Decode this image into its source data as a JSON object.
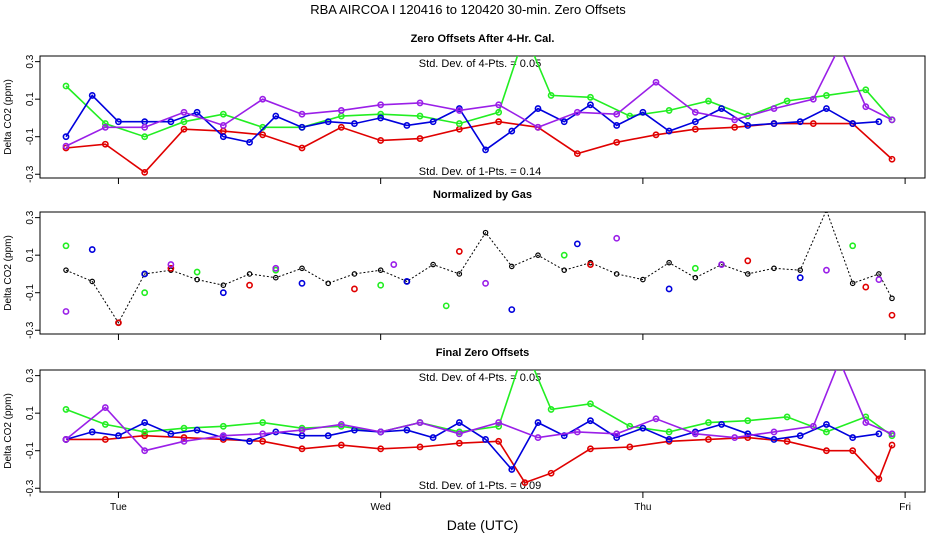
{
  "title": "RBA   AIRCOA I   120416 to 120420   30-min. Zero Offsets",
  "xlabel": "Date (UTC)",
  "colors": {
    "red": "#e00000",
    "green": "#22ee22",
    "blue": "#0000dd",
    "purple": "#9a1fe8",
    "black": "#000000"
  },
  "chart_data": [
    {
      "type": "line",
      "title": "Zero Offsets After 4-Hr. Cal.",
      "ylabel": "Delta CO2 (ppm)",
      "ylim": [
        -0.32,
        0.33
      ],
      "yticks": [
        "-0.3",
        "-0.1",
        "0.1",
        "0.3"
      ],
      "xlim": [
        0,
        3.15
      ],
      "xticks": [
        {
          "x": 0.2,
          "label": "Tue"
        },
        {
          "x": 1.2,
          "label": "Wed"
        },
        {
          "x": 2.2,
          "label": "Thu"
        },
        {
          "x": 3.2,
          "label": "Fri"
        }
      ],
      "annotations": [
        "Std. Dev. of 4-Pts. = 0.05",
        "Std. Dev. of 1-Pts. = 0.14"
      ],
      "series": [
        {
          "name": "red",
          "x": [
            0.0,
            0.15,
            0.3,
            0.45,
            0.6,
            0.75,
            0.9,
            1.05,
            1.2,
            1.35,
            1.5,
            1.65,
            1.8,
            1.95,
            2.1,
            2.25,
            2.4,
            2.55,
            2.7,
            2.85,
            3.0,
            3.15
          ],
          "y": [
            -0.16,
            -0.14,
            -0.29,
            -0.06,
            -0.07,
            -0.09,
            -0.16,
            -0.05,
            -0.12,
            -0.11,
            -0.06,
            -0.02,
            -0.05,
            -0.19,
            -0.13,
            -0.09,
            -0.06,
            -0.05,
            -0.03,
            -0.03,
            -0.03,
            -0.22
          ]
        },
        {
          "name": "green",
          "x": [
            0.0,
            0.15,
            0.3,
            0.45,
            0.6,
            0.75,
            0.9,
            1.05,
            1.2,
            1.35,
            1.5,
            1.65,
            1.75,
            1.85,
            2.0,
            2.15,
            2.3,
            2.45,
            2.6,
            2.75,
            2.9,
            3.05,
            3.15
          ],
          "y": [
            0.17,
            -0.03,
            -0.1,
            -0.02,
            0.02,
            -0.05,
            -0.05,
            0.01,
            0.02,
            0.01,
            -0.03,
            0.03,
            0.45,
            0.12,
            0.11,
            0.01,
            0.04,
            0.09,
            0.01,
            0.09,
            0.12,
            0.15,
            -0.01
          ]
        },
        {
          "name": "blue",
          "x": [
            0.0,
            0.1,
            0.2,
            0.3,
            0.4,
            0.5,
            0.6,
            0.7,
            0.8,
            0.9,
            1.0,
            1.1,
            1.2,
            1.3,
            1.4,
            1.5,
            1.6,
            1.7,
            1.8,
            1.9,
            2.0,
            2.1,
            2.2,
            2.3,
            2.4,
            2.5,
            2.6,
            2.7,
            2.8,
            2.9,
            3.0,
            3.1
          ],
          "y": [
            -0.1,
            0.12,
            -0.02,
            -0.02,
            -0.02,
            0.03,
            -0.1,
            -0.13,
            0.01,
            -0.05,
            -0.02,
            -0.03,
            0.0,
            -0.04,
            -0.02,
            0.05,
            -0.17,
            -0.07,
            0.05,
            -0.02,
            0.07,
            -0.04,
            0.03,
            -0.07,
            -0.02,
            0.05,
            -0.04,
            -0.03,
            -0.02,
            0.05,
            -0.03,
            -0.02
          ]
        },
        {
          "name": "purple",
          "x": [
            0.0,
            0.15,
            0.3,
            0.45,
            0.6,
            0.75,
            0.9,
            1.05,
            1.2,
            1.35,
            1.5,
            1.65,
            1.8,
            1.95,
            2.1,
            2.25,
            2.4,
            2.55,
            2.7,
            2.85,
            2.95,
            3.05,
            3.15
          ],
          "y": [
            -0.15,
            -0.05,
            -0.05,
            0.03,
            -0.04,
            0.1,
            0.02,
            0.04,
            0.07,
            0.08,
            0.04,
            0.07,
            -0.05,
            0.03,
            0.02,
            0.19,
            0.03,
            -0.01,
            0.05,
            0.1,
            0.38,
            0.06,
            -0.01
          ]
        }
      ]
    },
    {
      "type": "line",
      "title": "Normalized by Gas",
      "ylabel": "Delta CO2 (ppm)",
      "ylim": [
        -0.32,
        0.33
      ],
      "yticks": [
        "-0.3",
        "-0.1",
        "0.1",
        "0.3"
      ],
      "xlim": [
        0,
        3.15
      ],
      "xticks": [
        {
          "x": 0.2,
          "label": "Tue"
        },
        {
          "x": 1.2,
          "label": "Wed"
        },
        {
          "x": 2.2,
          "label": "Thu"
        },
        {
          "x": 3.2,
          "label": "Fri"
        }
      ],
      "annotations": [],
      "series": [
        {
          "name": "black",
          "x": [
            0.0,
            0.1,
            0.2,
            0.3,
            0.4,
            0.5,
            0.6,
            0.7,
            0.8,
            0.9,
            1.0,
            1.1,
            1.2,
            1.3,
            1.4,
            1.5,
            1.6,
            1.7,
            1.8,
            1.9,
            2.0,
            2.1,
            2.2,
            2.3,
            2.4,
            2.5,
            2.6,
            2.7,
            2.8,
            2.9,
            3.0,
            3.1,
            3.15
          ],
          "y": [
            0.02,
            -0.04,
            -0.26,
            0.0,
            0.02,
            -0.03,
            -0.06,
            0.0,
            -0.02,
            0.03,
            -0.05,
            0.0,
            0.02,
            -0.04,
            0.05,
            0.0,
            0.22,
            0.04,
            0.1,
            0.02,
            0.06,
            0.0,
            -0.03,
            0.06,
            -0.02,
            0.05,
            0.0,
            0.03,
            0.02,
            0.34,
            -0.05,
            0.0,
            -0.13
          ]
        }
      ],
      "points": {
        "red": [
          [
            0.2,
            -0.26
          ],
          [
            0.4,
            0.03
          ],
          [
            0.7,
            -0.06
          ],
          [
            1.1,
            -0.08
          ],
          [
            1.5,
            0.12
          ],
          [
            2.0,
            0.05
          ],
          [
            2.6,
            0.07
          ],
          [
            3.05,
            -0.07
          ],
          [
            3.15,
            -0.22
          ]
        ],
        "green": [
          [
            0.0,
            0.15
          ],
          [
            0.3,
            -0.1
          ],
          [
            0.5,
            0.01
          ],
          [
            0.8,
            0.02
          ],
          [
            1.2,
            -0.06
          ],
          [
            1.45,
            -0.17
          ],
          [
            1.9,
            0.1
          ],
          [
            2.4,
            0.03
          ],
          [
            3.0,
            0.15
          ]
        ],
        "blue": [
          [
            0.1,
            0.13
          ],
          [
            0.3,
            0.0
          ],
          [
            0.6,
            -0.1
          ],
          [
            0.9,
            -0.05
          ],
          [
            1.3,
            -0.04
          ],
          [
            1.7,
            -0.19
          ],
          [
            1.95,
            0.16
          ],
          [
            2.3,
            -0.08
          ],
          [
            2.8,
            -0.02
          ]
        ],
        "purple": [
          [
            0.0,
            -0.2
          ],
          [
            0.4,
            0.05
          ],
          [
            0.8,
            0.03
          ],
          [
            1.25,
            0.05
          ],
          [
            1.6,
            -0.05
          ],
          [
            2.1,
            0.19
          ],
          [
            2.5,
            0.05
          ],
          [
            2.9,
            0.02
          ],
          [
            3.1,
            -0.03
          ]
        ]
      }
    },
    {
      "type": "line",
      "title": "Final Zero Offsets",
      "ylabel": "Delta CO2 (ppm)",
      "ylim": [
        -0.32,
        0.33
      ],
      "yticks": [
        "-0.3",
        "-0.1",
        "0.1",
        "0.3"
      ],
      "xlim": [
        0,
        3.15
      ],
      "xticks": [
        {
          "x": 0.2,
          "label": "Tue"
        },
        {
          "x": 1.2,
          "label": "Wed"
        },
        {
          "x": 2.2,
          "label": "Thu"
        },
        {
          "x": 3.2,
          "label": "Fri"
        }
      ],
      "annotations": [
        "Std. Dev. of 4-Pts. = 0.05",
        "Std. Dev. of 1-Pts. = 0.09"
      ],
      "series": [
        {
          "name": "red",
          "x": [
            0.0,
            0.15,
            0.3,
            0.45,
            0.6,
            0.75,
            0.9,
            1.05,
            1.2,
            1.35,
            1.5,
            1.65,
            1.75,
            1.85,
            2.0,
            2.15,
            2.3,
            2.45,
            2.6,
            2.75,
            2.9,
            3.0,
            3.1,
            3.15
          ],
          "y": [
            -0.04,
            -0.04,
            -0.02,
            -0.03,
            -0.04,
            -0.05,
            -0.09,
            -0.07,
            -0.09,
            -0.08,
            -0.06,
            -0.05,
            -0.27,
            -0.22,
            -0.09,
            -0.08,
            -0.05,
            -0.04,
            -0.03,
            -0.05,
            -0.1,
            -0.1,
            -0.25,
            -0.07
          ]
        },
        {
          "name": "green",
          "x": [
            0.0,
            0.15,
            0.3,
            0.45,
            0.6,
            0.75,
            0.9,
            1.05,
            1.2,
            1.35,
            1.5,
            1.65,
            1.75,
            1.85,
            2.0,
            2.15,
            2.3,
            2.45,
            2.6,
            2.75,
            2.9,
            3.05,
            3.15
          ],
          "y": [
            0.12,
            0.04,
            0.0,
            0.02,
            0.03,
            0.05,
            0.02,
            0.03,
            0.0,
            0.05,
            0.0,
            0.03,
            0.45,
            0.12,
            0.15,
            0.03,
            0.0,
            0.05,
            0.06,
            0.08,
            0.0,
            0.08,
            -0.02
          ]
        },
        {
          "name": "blue",
          "x": [
            0.0,
            0.1,
            0.2,
            0.3,
            0.4,
            0.5,
            0.6,
            0.7,
            0.8,
            0.9,
            1.0,
            1.1,
            1.2,
            1.3,
            1.4,
            1.5,
            1.6,
            1.7,
            1.8,
            1.9,
            2.0,
            2.1,
            2.2,
            2.3,
            2.4,
            2.5,
            2.6,
            2.7,
            2.8,
            2.9,
            3.0,
            3.1
          ],
          "y": [
            -0.04,
            0.0,
            -0.02,
            0.05,
            -0.01,
            0.01,
            -0.03,
            -0.05,
            0.0,
            -0.02,
            -0.02,
            0.01,
            0.0,
            0.01,
            -0.03,
            0.05,
            -0.04,
            -0.2,
            0.05,
            -0.02,
            0.06,
            -0.03,
            0.02,
            -0.04,
            0.0,
            0.04,
            -0.01,
            -0.04,
            -0.02,
            0.04,
            -0.03,
            -0.01
          ]
        },
        {
          "name": "purple",
          "x": [
            0.0,
            0.15,
            0.3,
            0.45,
            0.6,
            0.75,
            0.9,
            1.05,
            1.2,
            1.35,
            1.5,
            1.65,
            1.8,
            1.95,
            2.1,
            2.25,
            2.4,
            2.55,
            2.7,
            2.85,
            2.95,
            3.05,
            3.15
          ],
          "y": [
            -0.04,
            0.13,
            -0.1,
            -0.05,
            -0.02,
            -0.01,
            0.01,
            0.04,
            0.0,
            0.05,
            -0.01,
            0.05,
            -0.03,
            0.0,
            -0.01,
            0.07,
            -0.01,
            -0.03,
            0.0,
            0.03,
            0.38,
            0.05,
            -0.01
          ]
        }
      ]
    }
  ]
}
